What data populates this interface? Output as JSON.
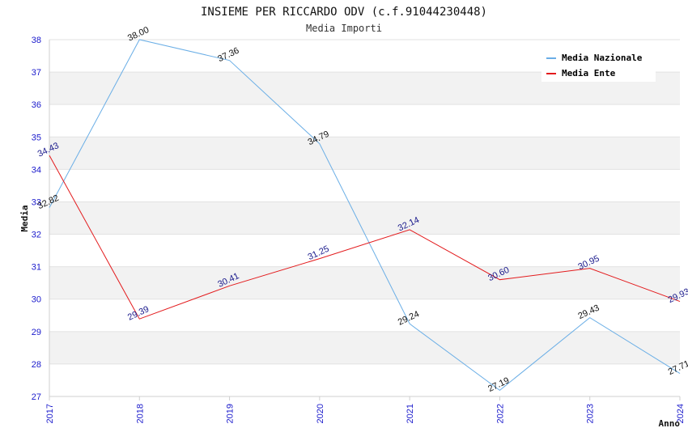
{
  "chart_data": {
    "type": "line",
    "title": "INSIEME PER RICCARDO ODV (c.f.91044230448)",
    "subtitle": "Media Importi",
    "xlabel": "Anno",
    "ylabel": "Media",
    "x": [
      "2017",
      "2018",
      "2019",
      "2020",
      "2021",
      "2022",
      "2023",
      "2024"
    ],
    "ylim": [
      27,
      38
    ],
    "yticks": [
      "27",
      "28",
      "29",
      "30",
      "31",
      "32",
      "33",
      "34",
      "35",
      "36",
      "37",
      "38"
    ],
    "grid": "horizontal bands",
    "legend_position": "top-right",
    "series": [
      {
        "name": "Media Nazionale",
        "color": "#6aaee6",
        "values": [
          32.82,
          38.0,
          37.36,
          34.79,
          29.24,
          27.19,
          29.43,
          27.71
        ],
        "labels": [
          "32.82",
          "38.00",
          "37.36",
          "34.79",
          "29.24",
          "27.19",
          "29.43",
          "27.71"
        ]
      },
      {
        "name": "Media Ente",
        "color": "#e31a1c",
        "values": [
          34.43,
          29.39,
          30.41,
          31.25,
          32.14,
          30.6,
          30.95,
          29.93
        ],
        "labels": [
          "34.43",
          "29.39",
          "30.41",
          "31.25",
          "32.14",
          "30.60",
          "30.95",
          "29.93"
        ]
      }
    ]
  }
}
